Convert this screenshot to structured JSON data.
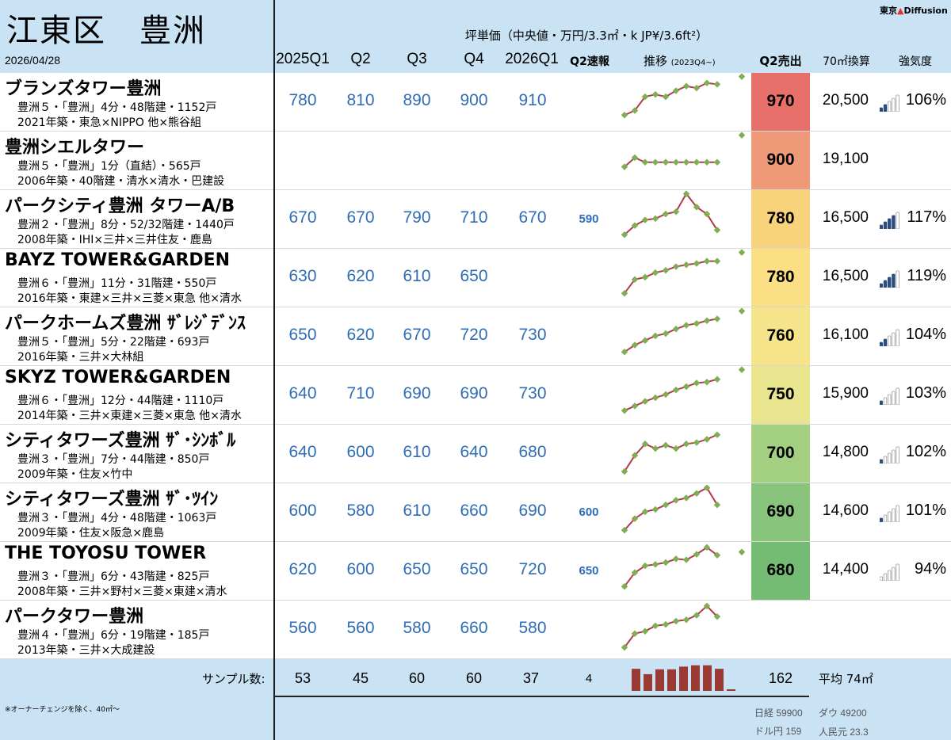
{
  "header": {
    "ward": "江東区　豊洲",
    "date": "2026/04/28",
    "brand_city": "東京",
    "brand_name": "Diffusion",
    "title": "坪単価（中央値・万円/3.3㎡・k JP¥/3.6ft²）",
    "columns": [
      "2025Q1",
      "Q2",
      "Q3",
      "Q4",
      "2026Q1",
      "Q2速報",
      "推移",
      "Q2売出",
      "70㎡換算",
      "強気度"
    ],
    "trend_note": "(2023Q4~)"
  },
  "rows": [
    {
      "name": "ブランズタワー豊洲",
      "info1": "豊洲５・「豊洲」4分・48階建・1152戸",
      "info2": "2021年築・東急×NIPPO 他×熊谷組",
      "prices": [
        "780",
        "810",
        "890",
        "900",
        "910"
      ],
      "flash": "",
      "sold": "970",
      "conv": "20,500",
      "strength": "106%",
      "bars": 2,
      "color": "#e8706b",
      "spark": [
        0.15,
        0.25,
        0.55,
        0.6,
        0.55,
        0.68,
        0.78,
        0.74,
        0.85,
        0.82
      ],
      "spark_lead": 0.99
    },
    {
      "name": "豊洲シエルタワー",
      "info1": "豊洲５・「豊洲」1分（直結）・565戸",
      "info2": "2006年築・40階建・清水×清水・巴建設",
      "prices": [
        "",
        "",
        "",
        "",
        ""
      ],
      "flash": "",
      "sold": "900",
      "conv": "19,100",
      "strength": "",
      "bars": 0,
      "color": "#ee9a78",
      "spark": [
        0.3,
        0.5,
        0.4,
        0.4,
        0.4,
        0.4,
        0.4,
        0.4,
        0.4,
        0.4
      ],
      "spark_lead": 0.99
    },
    {
      "name": "パークシティ豊洲 タワーA/B",
      "info1": "豊洲２・「豊洲」8分・52/32階建・1440戸",
      "info2": "2008年築・IHI×三井×三井住友・鹿島",
      "prices": [
        "670",
        "670",
        "790",
        "710",
        "670"
      ],
      "flash": "590",
      "sold": "780",
      "conv": "16,500",
      "strength": "117%",
      "bars": 4,
      "color": "#f9d27c",
      "spark": [
        0.1,
        0.3,
        0.42,
        0.45,
        0.55,
        0.6,
        0.99,
        0.7,
        0.55,
        0.2
      ],
      "spark_lead": null
    },
    {
      "name": "BAYZ TOWER&GARDEN",
      "info1": "豊洲６・「豊洲」11分・31階建・550戸",
      "info2": "2016年築・東建×三井×三菱×東急 他×清水",
      "prices": [
        "630",
        "620",
        "610",
        "650",
        ""
      ],
      "flash": "",
      "sold": "780",
      "conv": "16,500",
      "strength": "119%",
      "bars": 4,
      "color": "#fbdf84",
      "spark": [
        0.1,
        0.4,
        0.45,
        0.55,
        0.6,
        0.68,
        0.72,
        0.75,
        0.8,
        0.8
      ],
      "spark_lead": 0.99
    },
    {
      "name": "パークホームズ豊洲 ｻﾞﾚｼﾞﾃﾞﾝｽ",
      "info1": "豊洲５・「豊洲」5分・22階建・693戸",
      "info2": "2016年築・三井×大林組",
      "prices": [
        "650",
        "620",
        "670",
        "720",
        "730"
      ],
      "flash": "",
      "sold": "760",
      "conv": "16,100",
      "strength": "104%",
      "bars": 2,
      "color": "#f6e48a",
      "spark": [
        0.1,
        0.25,
        0.35,
        0.45,
        0.5,
        0.6,
        0.68,
        0.72,
        0.78,
        0.82
      ],
      "spark_lead": 0.99
    },
    {
      "name": "SKYZ TOWER&GARDEN",
      "info1": "豊洲６・「豊洲」12分・44階建・1110戸",
      "info2": "2014年築・三井×東建×三菱×東急 他×清水",
      "prices": [
        "640",
        "710",
        "690",
        "690",
        "730"
      ],
      "flash": "",
      "sold": "750",
      "conv": "15,900",
      "strength": "103%",
      "bars": 1,
      "color": "#e9e48e",
      "spark": [
        0.1,
        0.2,
        0.3,
        0.38,
        0.45,
        0.55,
        0.62,
        0.7,
        0.72,
        0.78
      ],
      "spark_lead": 0.99
    },
    {
      "name": "シティタワーズ豊洲 ｻﾞ･ｼﾝﾎﾞﾙ",
      "info1": "豊洲３・「豊洲」7分・44階建・850戸",
      "info2": "2009年築・住友×竹中",
      "prices": [
        "640",
        "600",
        "610",
        "640",
        "680"
      ],
      "flash": "",
      "sold": "700",
      "conv": "14,800",
      "strength": "102%",
      "bars": 1,
      "color": "#a2cf80",
      "spark": [
        0.05,
        0.4,
        0.65,
        0.55,
        0.62,
        0.55,
        0.65,
        0.68,
        0.75,
        0.85
      ],
      "spark_lead": null
    },
    {
      "name": "シティタワーズ豊洲 ｻﾞ･ﾂｲﾝ",
      "info1": "豊洲３・「豊洲」4分・48階建・1063戸",
      "info2": "2009年築・住友×阪急×鹿島",
      "prices": [
        "600",
        "580",
        "610",
        "660",
        "690"
      ],
      "flash": "600",
      "sold": "690",
      "conv": "14,600",
      "strength": "101%",
      "bars": 1,
      "color": "#89c47c",
      "spark": [
        0.05,
        0.3,
        0.45,
        0.5,
        0.6,
        0.7,
        0.75,
        0.85,
        0.97,
        0.6
      ],
      "spark_lead": null
    },
    {
      "name": "THE TOYOSU TOWER",
      "info1": "豊洲３・「豊洲」6分・43階建・825戸",
      "info2": "2008年築・三井×野村×三菱×東建×清水",
      "prices": [
        "620",
        "600",
        "650",
        "650",
        "720"
      ],
      "flash": "650",
      "sold": "680",
      "conv": "14,400",
      "strength": "94%",
      "bars": 0,
      "color": "#74bb74",
      "spark": [
        0.1,
        0.4,
        0.55,
        0.58,
        0.62,
        0.7,
        0.68,
        0.8,
        0.95,
        0.78
      ],
      "spark_lead": 0.85
    },
    {
      "name": "パークタワー豊洲",
      "info1": "豊洲４・「豊洲」6分・19階建・185戸",
      "info2": "2013年築・三井×大成建設",
      "prices": [
        "560",
        "560",
        "580",
        "660",
        "580"
      ],
      "flash": "",
      "sold": "",
      "conv": "",
      "strength": "",
      "bars": 0,
      "color": "",
      "spark": [
        0.05,
        0.35,
        0.4,
        0.52,
        0.55,
        0.62,
        0.65,
        0.75,
        0.95,
        0.72
      ],
      "spark_lead": null
    }
  ],
  "footer": {
    "sample_label": "サンプル数:",
    "samples": [
      "53",
      "45",
      "60",
      "60",
      "37",
      "4"
    ],
    "sample_hist": [
      0.82,
      0.62,
      0.8,
      0.8,
      0.9,
      0.95,
      0.95,
      0.82,
      0.05
    ],
    "sold_count": "162",
    "avg": "平均 74㎡",
    "note": "※オーナーチェンジを除く、40㎡〜",
    "nikkei": "日経 59900",
    "dow": "ダウ 49200",
    "usdjpy": "ドル円 159",
    "cny": "人民元 23.3"
  },
  "colors": {
    "header_bg": "#c9e2f4",
    "price_blue": "#2f6db5",
    "spark_line": "#b23b4a",
    "spark_point": "#7fae55",
    "hist_bar": "#9a3a32"
  }
}
